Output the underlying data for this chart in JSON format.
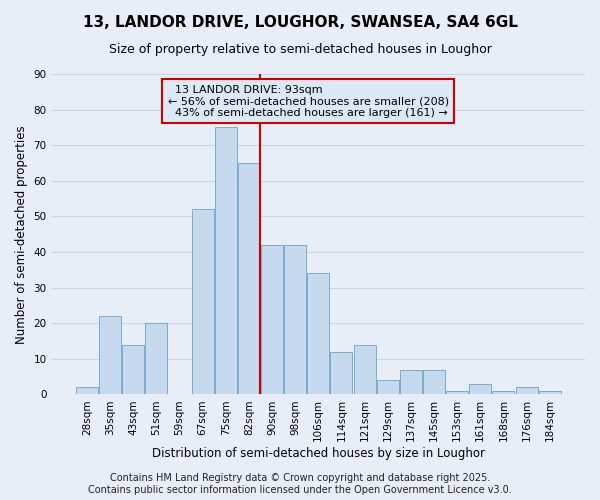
{
  "title": "13, LANDOR DRIVE, LOUGHOR, SWANSEA, SA4 6GL",
  "subtitle": "Size of property relative to semi-detached houses in Loughor",
  "xlabel": "Distribution of semi-detached houses by size in Loughor",
  "ylabel": "Number of semi-detached properties",
  "categories": [
    "28sqm",
    "35sqm",
    "43sqm",
    "51sqm",
    "59sqm",
    "67sqm",
    "75sqm",
    "82sqm",
    "90sqm",
    "98sqm",
    "106sqm",
    "114sqm",
    "121sqm",
    "129sqm",
    "137sqm",
    "145sqm",
    "153sqm",
    "161sqm",
    "168sqm",
    "176sqm",
    "184sqm"
  ],
  "values": [
    2,
    22,
    14,
    20,
    0,
    52,
    75,
    65,
    42,
    42,
    34,
    12,
    14,
    4,
    7,
    7,
    1,
    3,
    1,
    2,
    1
  ],
  "bar_color": "#c5d9ef",
  "bar_edge_color": "#7aabcf",
  "vline_x": 7.5,
  "vline_color": "#cc0000",
  "property_label": "13 LANDOR DRIVE: 93sqm",
  "pct_smaller": 56,
  "count_smaller": 208,
  "pct_larger": 43,
  "count_larger": 161,
  "annotation_box_facecolor": "#dce8f5",
  "annotation_box_edgecolor": "#cc0000",
  "ylim": [
    0,
    90
  ],
  "yticks": [
    0,
    10,
    20,
    30,
    40,
    50,
    60,
    70,
    80,
    90
  ],
  "bg_color": "#e8eef8",
  "grid_color": "#c8d4e4",
  "title_fontsize": 11,
  "subtitle_fontsize": 9,
  "axis_label_fontsize": 8.5,
  "tick_fontsize": 7.5,
  "annotation_fontsize": 8,
  "footer_fontsize": 7,
  "footer_line1": "Contains HM Land Registry data © Crown copyright and database right 2025.",
  "footer_line2": "Contains public sector information licensed under the Open Government Licence v3.0."
}
